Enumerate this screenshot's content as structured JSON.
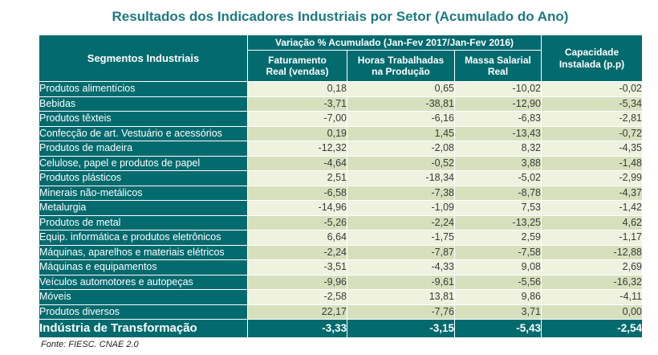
{
  "title": "Resultados dos Indicadores Industriais por Setor (Acumulado do Ano)",
  "source_note": "Fonte: FIESC. CNAE 2.0",
  "colors": {
    "header_teal": "#036a6e",
    "title_teal": "#1b7a81",
    "row_light": "#eef2de",
    "row_dark": "#d7e0bd",
    "value_text": "#3a3a3a",
    "grid_white": "#ffffff"
  },
  "table": {
    "corner_header": "Segmentos Industriais",
    "group_header": "Variação % Acumulado (Jan-Fev 2017/Jan-Fev 2016)",
    "sub_headers": {
      "faturamento": "Faturamento\nReal (vendas)",
      "horas": "Horas Trabalhadas\nna Produção",
      "massa": "Massa Salarial\nReal",
      "capacidade": "Capacidade\nInstalada (p.p)"
    }
  },
  "chart_data": {
    "type": "table",
    "title": "Resultados dos Indicadores Industriais por Setor (Acumulado do Ano)",
    "period": "Variação % Acumulado (Jan-Fev 2017/Jan-Fev 2016)",
    "columns": [
      "Faturamento Real (vendas)",
      "Horas Trabalhadas na Produção",
      "Massa Salarial Real",
      "Capacidade Instalada (p.p)"
    ],
    "rows": [
      {
        "segment": "Produtos alimentícios",
        "values": [
          0.18,
          0.65,
          -10.02,
          -0.02
        ]
      },
      {
        "segment": "Bebidas",
        "values": [
          -3.71,
          -38.81,
          -12.9,
          -5.34
        ]
      },
      {
        "segment": "Produtos têxteis",
        "values": [
          -7.0,
          -6.16,
          -6.83,
          -2.81
        ]
      },
      {
        "segment": "Confecção de art. Vestuário e acessórios",
        "values": [
          0.19,
          1.45,
          -13.43,
          -0.72
        ]
      },
      {
        "segment": "Produtos de madeira",
        "values": [
          -12.32,
          -2.08,
          8.32,
          -4.35
        ]
      },
      {
        "segment": "Celulose, papel e produtos de papel",
        "values": [
          -4.64,
          -0.52,
          3.88,
          -1.48
        ]
      },
      {
        "segment": "Produtos plásticos",
        "values": [
          2.51,
          -18.34,
          -5.02,
          -2.99
        ]
      },
      {
        "segment": "Minerais não-metálicos",
        "values": [
          -6.58,
          -7.38,
          -8.78,
          -4.37
        ]
      },
      {
        "segment": "Metalurgia",
        "values": [
          -14.96,
          -1.09,
          7.53,
          -1.42
        ]
      },
      {
        "segment": "Produtos de metal",
        "values": [
          -5.26,
          -2.24,
          -13.25,
          4.62
        ]
      },
      {
        "segment": "Equip. informática e produtos eletrônicos",
        "values": [
          6.64,
          -1.75,
          2.59,
          -1.17
        ]
      },
      {
        "segment": "Máquinas, aparelhos e materiais elétricos",
        "values": [
          -2.24,
          -7.87,
          -7.58,
          -12.88
        ]
      },
      {
        "segment": "Máquinas e equipamentos",
        "values": [
          -3.51,
          -4.33,
          9.08,
          2.69
        ]
      },
      {
        "segment": "Veículos automotores e autopeças",
        "values": [
          -9.96,
          -9.61,
          -5.56,
          -16.32
        ]
      },
      {
        "segment": "Móveis",
        "values": [
          -2.58,
          13.81,
          9.86,
          -4.11
        ]
      },
      {
        "segment": "Produtos diversos",
        "values": [
          22.17,
          -7.76,
          3.71,
          0.0
        ]
      }
    ],
    "total": {
      "segment": "Indústria de Transformação",
      "values": [
        -3.33,
        -3.15,
        -5.43,
        -2.54
      ]
    },
    "number_format": "two decimals, comma as decimal separator",
    "source": "Fonte: FIESC. CNAE 2.0"
  }
}
